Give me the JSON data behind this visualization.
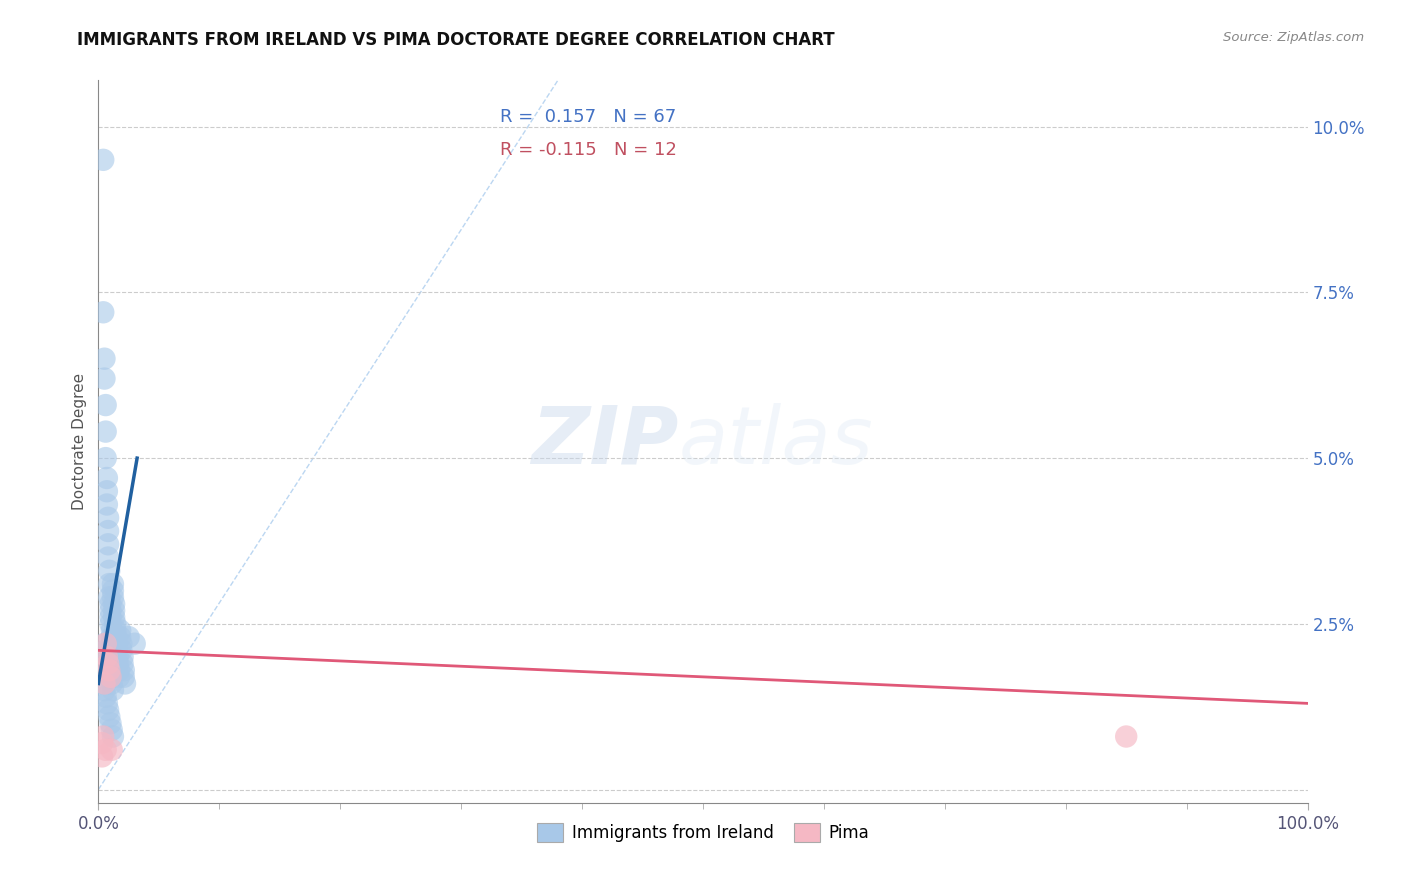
{
  "title": "IMMIGRANTS FROM IRELAND VS PIMA DOCTORATE DEGREE CORRELATION CHART",
  "source_text": "Source: ZipAtlas.com",
  "ylabel": "Doctorate Degree",
  "xlim": [
    0.0,
    1.0
  ],
  "ylim": [
    -0.002,
    0.107
  ],
  "legend_r1": "R =  0.157",
  "legend_n1": "N = 67",
  "legend_r2": "R = -0.115",
  "legend_n2": "N = 12",
  "blue_color": "#a8c8e8",
  "blue_line_color": "#2060a0",
  "pink_color": "#f5b8c4",
  "pink_line_color": "#e05878",
  "watermark_zip": "ZIP",
  "watermark_atlas": "atlas",
  "title_fontsize": 12,
  "background_color": "#ffffff",
  "blue_scatter_x": [
    0.004,
    0.004,
    0.005,
    0.005,
    0.006,
    0.006,
    0.006,
    0.007,
    0.007,
    0.007,
    0.008,
    0.008,
    0.008,
    0.008,
    0.009,
    0.009,
    0.009,
    0.01,
    0.01,
    0.01,
    0.01,
    0.011,
    0.011,
    0.011,
    0.012,
    0.012,
    0.012,
    0.013,
    0.013,
    0.013,
    0.014,
    0.014,
    0.015,
    0.015,
    0.015,
    0.016,
    0.016,
    0.017,
    0.017,
    0.018,
    0.018,
    0.019,
    0.019,
    0.02,
    0.02,
    0.021,
    0.021,
    0.022,
    0.005,
    0.006,
    0.007,
    0.008,
    0.009,
    0.01,
    0.011,
    0.012,
    0.004,
    0.005,
    0.006,
    0.007,
    0.008,
    0.009,
    0.01,
    0.011,
    0.012,
    0.025,
    0.03
  ],
  "blue_scatter_y": [
    0.095,
    0.072,
    0.065,
    0.062,
    0.058,
    0.054,
    0.05,
    0.047,
    0.045,
    0.043,
    0.041,
    0.039,
    0.037,
    0.035,
    0.033,
    0.031,
    0.029,
    0.028,
    0.027,
    0.026,
    0.025,
    0.024,
    0.023,
    0.022,
    0.031,
    0.03,
    0.029,
    0.028,
    0.027,
    0.026,
    0.025,
    0.024,
    0.023,
    0.022,
    0.021,
    0.02,
    0.019,
    0.018,
    0.017,
    0.024,
    0.023,
    0.022,
    0.021,
    0.02,
    0.019,
    0.018,
    0.017,
    0.016,
    0.022,
    0.021,
    0.02,
    0.019,
    0.018,
    0.017,
    0.016,
    0.015,
    0.016,
    0.015,
    0.014,
    0.013,
    0.012,
    0.011,
    0.01,
    0.009,
    0.008,
    0.023,
    0.022
  ],
  "pink_scatter_x": [
    0.003,
    0.004,
    0.005,
    0.006,
    0.007,
    0.008,
    0.009,
    0.01,
    0.003,
    0.006,
    0.85,
    0.011
  ],
  "pink_scatter_y": [
    0.007,
    0.008,
    0.016,
    0.022,
    0.02,
    0.019,
    0.018,
    0.017,
    0.005,
    0.006,
    0.008,
    0.006
  ],
  "blue_trendline_x": [
    0.0,
    0.032
  ],
  "blue_trendline_y": [
    0.016,
    0.05
  ],
  "pink_trendline_x": [
    0.0,
    1.0
  ],
  "pink_trendline_y": [
    0.021,
    0.013
  ],
  "diag_line_x": [
    0.0,
    0.38
  ],
  "diag_line_y": [
    0.0,
    0.107
  ]
}
